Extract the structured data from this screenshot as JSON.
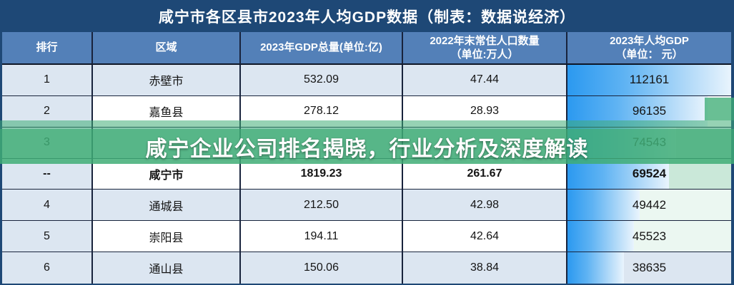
{
  "title": "咸宁市各区县市2023年人均GDP数据（制表：数据说经济）",
  "banner": {
    "text": "咸宁企业公司排名揭晓，行业分析及深度解读",
    "color": "#3fad76"
  },
  "table": {
    "columns": [
      {
        "key": "rank",
        "label": "排行"
      },
      {
        "key": "region",
        "label": "区域"
      },
      {
        "key": "gdp",
        "label": "2023年GDP总量(单位:亿)"
      },
      {
        "key": "population",
        "label": "2022年末常住人口数量\n（单位:万人）"
      },
      {
        "key": "per_capita",
        "label": "2023年人均GDP\n（单位： 元）"
      }
    ],
    "rows": [
      {
        "rank": "1",
        "region": "赤壁市",
        "gdp": "532.09",
        "population": "47.44",
        "per_capita": "112161",
        "per_capita_value": 112161,
        "bold": false,
        "tint": null
      },
      {
        "rank": "2",
        "region": "嘉鱼县",
        "gdp": "278.12",
        "population": "28.93",
        "per_capita": "96135",
        "per_capita_value": 96135,
        "bold": false,
        "tint": null
      },
      {
        "rank": "3",
        "region": "",
        "gdp": "",
        "population": "",
        "per_capita": "74543",
        "per_capita_value": 74543,
        "bold": false,
        "tint": null
      },
      {
        "rank": "--",
        "region": "咸宁市",
        "gdp": "1819.23",
        "population": "261.67",
        "per_capita": "69524",
        "per_capita_value": 69524,
        "bold": true,
        "tint": "strong"
      },
      {
        "rank": "4",
        "region": "通城县",
        "gdp": "212.50",
        "population": "42.98",
        "per_capita": "49442",
        "per_capita_value": 49442,
        "bold": false,
        "tint": "light"
      },
      {
        "rank": "5",
        "region": "崇阳县",
        "gdp": "194.11",
        "population": "42.64",
        "per_capita": "45523",
        "per_capita_value": 45523,
        "bold": false,
        "tint": "light"
      },
      {
        "rank": "6",
        "region": "通山县",
        "gdp": "150.06",
        "population": "38.84",
        "per_capita": "38635",
        "per_capita_value": 38635,
        "bold": false,
        "tint": null
      }
    ],
    "bar_max": 112161
  },
  "colors": {
    "title_bar": "#1e4876",
    "header": "#5380b8",
    "row_light_blue": "#dce6f1",
    "grid_line": "#18233c",
    "databar_start": "#2b99f0",
    "databar_end": "#e9f4fd",
    "overlay_green": "#3fad76"
  },
  "chart_data": {
    "type": "table",
    "title": "咸宁市各区县市2023年人均GDP数据（制表：数据说经济）",
    "columns": [
      "排行",
      "区域",
      "2023年GDP总量(单位:亿)",
      "2022年末常住人口数量（单位:万人）",
      "2023年人均GDP（单位：元）"
    ],
    "rows": [
      [
        "1",
        "赤壁市",
        532.09,
        47.44,
        112161
      ],
      [
        "2",
        null,
        278.12,
        28.93,
        96135
      ],
      [
        "3",
        null,
        null,
        null,
        74543
      ],
      [
        "--",
        "咸宁市",
        1819.23,
        261.67,
        69524
      ],
      [
        "4",
        "通城县",
        212.5,
        42.98,
        49442
      ],
      [
        "5",
        "崇阳县",
        194.11,
        42.64,
        45523
      ],
      [
        "6",
        "通山县",
        150.06,
        38.84,
        38635
      ]
    ],
    "row_2_region_visible_text": "嘉鱼县",
    "databar_column": "2023年人均GDP（单位：元）",
    "databar_max": 112161,
    "notes_visible_overlay_text": "咸宁企业公司排名揭晓，行业分析及深度解读"
  }
}
